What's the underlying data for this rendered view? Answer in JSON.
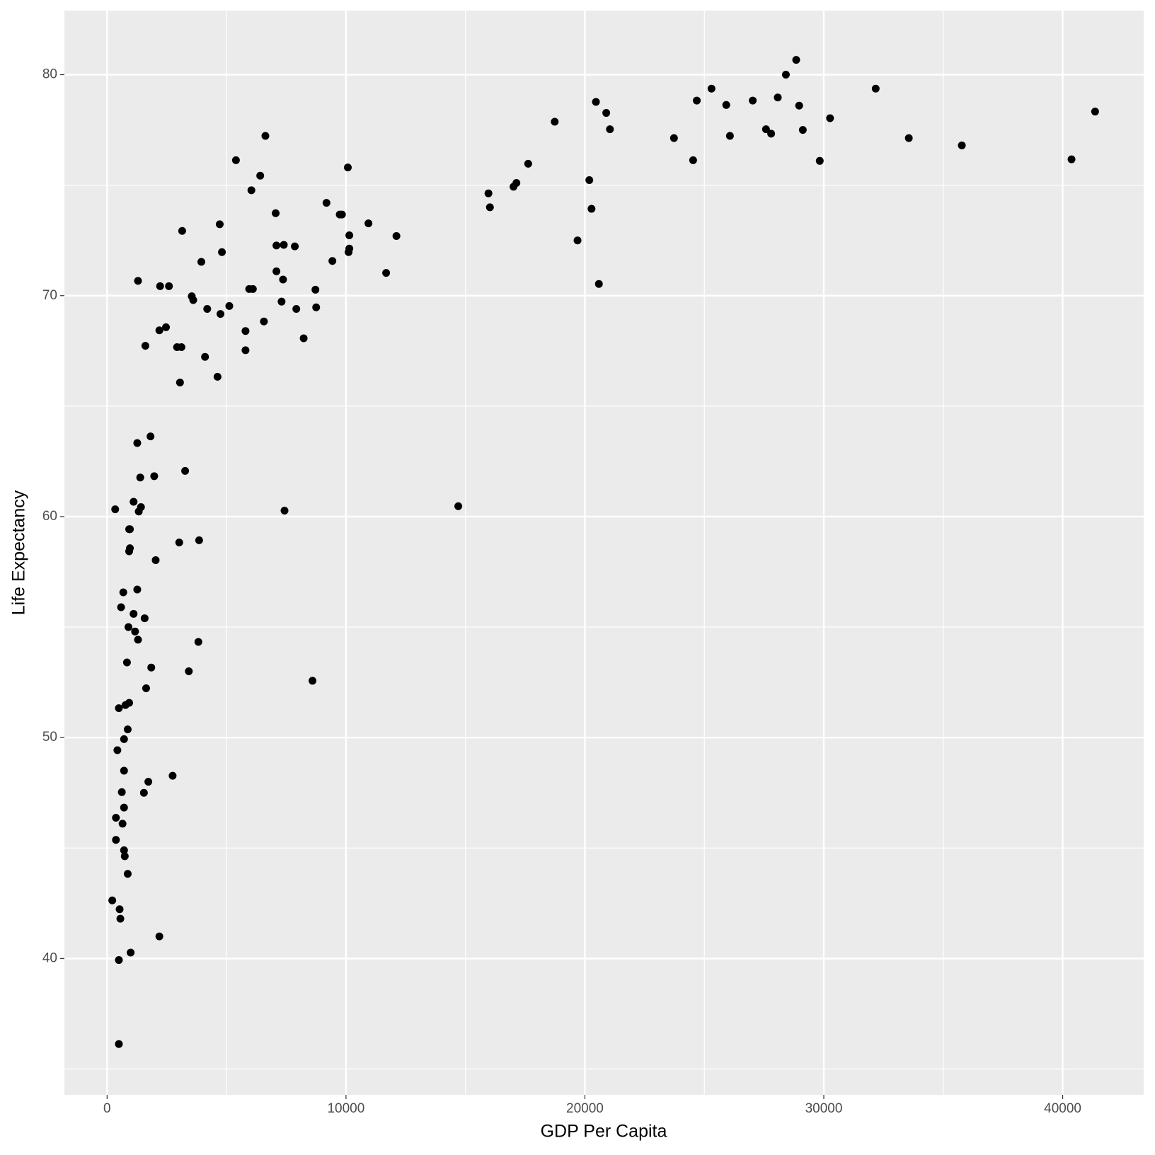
{
  "chart_data": {
    "type": "scatter",
    "x_label": "GDP Per Capita",
    "y_label": "Life Expectancy",
    "xlim": [
      -1787,
      43390
    ],
    "ylim": [
      33.83,
      82.9
    ],
    "xticks": [
      0,
      10000,
      20000,
      30000,
      40000
    ],
    "yticks": [
      40,
      50,
      60,
      70,
      80
    ],
    "minor_xticks": [
      5000,
      15000,
      25000,
      35000
    ],
    "minor_yticks": [
      35,
      45,
      55,
      65,
      75
    ],
    "grid": true,
    "color": "#000000",
    "series": [
      {
        "x": [
          28845,
          28413,
          25300,
          32173,
          24684,
          27026,
          28074,
          25917,
          28968,
          20462,
          20894,
          41356,
          18737,
          30262,
          21048,
          27581,
          29122,
          27797,
          26071,
          23729,
          33559,
          35778,
          24530,
          29831,
          40370,
          17627,
          17134,
          17011,
          20185,
          15963,
          16025,
          20277,
          19692,
          20586,
          14700,
          10077,
          5393,
          6626,
          6410,
          6040,
          9183,
          9738,
          9831,
          7057,
          10940,
          4715,
          3143,
          10139,
          12111,
          7088,
          7396,
          7858,
          10139,
          10108,
          4807,
          3945,
          9430,
          7088,
          11680,
          7365,
          1294,
          2219,
          2589,
          5948,
          6102,
          8721,
          3544,
          3606,
          7304,
          5116,
          4191,
          7920,
          8752,
          4746,
          6564,
          2465,
          2188,
          5794,
          8228,
          1602,
          2928,
          3112,
          5794,
          4099,
          4622,
          3051,
          1818,
          1263,
          3267,
          1387,
          1972,
          1109,
          1418,
          1325,
          339,
          7427,
          924,
          955,
          3020,
          3852,
          955,
          924,
          2034,
          678,
          1263,
          586,
          1109,
          1572,
          894,
          1171,
          1294,
          3821,
          832,
          1849,
          3421,
          8598,
          1633,
          924,
          770,
          493,
          863,
          709,
          431,
          709,
          2743,
          1726,
          616,
          1541,
          709,
          370,
          647,
          370,
          709,
          740,
          863,
          216,
          524,
          555,
          2188,
          986,
          493,
          493
        ],
        "y": [
          80.67,
          80.0,
          79.37,
          79.37,
          78.83,
          78.83,
          78.97,
          78.63,
          78.6,
          78.77,
          78.27,
          78.33,
          77.87,
          78.03,
          77.53,
          77.53,
          77.5,
          77.33,
          77.23,
          77.13,
          77.13,
          76.8,
          76.13,
          76.1,
          76.17,
          75.97,
          75.1,
          74.93,
          75.23,
          74.63,
          74.0,
          73.93,
          72.5,
          70.53,
          60.47,
          75.8,
          76.13,
          77.23,
          75.43,
          74.77,
          74.2,
          73.67,
          73.67,
          73.73,
          73.27,
          73.23,
          72.93,
          72.73,
          72.7,
          72.27,
          72.3,
          72.23,
          72.13,
          71.97,
          71.97,
          71.53,
          71.57,
          71.1,
          71.03,
          70.73,
          70.67,
          70.43,
          70.43,
          70.3,
          70.3,
          70.27,
          69.97,
          69.8,
          69.73,
          69.53,
          69.4,
          69.4,
          69.47,
          69.17,
          68.83,
          68.57,
          68.43,
          68.4,
          68.07,
          67.73,
          67.67,
          67.67,
          67.53,
          67.23,
          66.33,
          66.07,
          63.63,
          63.33,
          62.07,
          61.77,
          61.83,
          60.67,
          60.43,
          60.23,
          60.33,
          60.27,
          59.43,
          59.43,
          58.83,
          58.93,
          58.57,
          58.43,
          58.03,
          56.57,
          56.7,
          55.9,
          55.6,
          55.4,
          55.0,
          54.8,
          54.43,
          54.33,
          53.4,
          53.17,
          53.0,
          52.57,
          52.23,
          51.57,
          51.47,
          51.33,
          50.37,
          49.93,
          49.43,
          48.5,
          48.27,
          48.0,
          47.53,
          47.5,
          46.83,
          46.37,
          46.1,
          45.37,
          44.9,
          44.63,
          43.83,
          42.63,
          42.23,
          41.8,
          41.0,
          40.27,
          39.93,
          36.13
        ]
      }
    ]
  }
}
